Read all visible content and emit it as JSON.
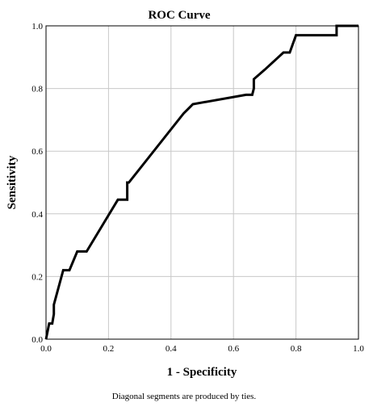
{
  "chart_data": {
    "type": "line",
    "title": "ROC Curve",
    "xlabel": "1 - Specificity",
    "ylabel": "Sensitivity",
    "xlim": [
      0,
      1
    ],
    "ylim": [
      0,
      1
    ],
    "xticks": [
      "0.0",
      "0.2",
      "0.4",
      "0.6",
      "0.8",
      "1.0"
    ],
    "yticks": [
      "0.0",
      "0.2",
      "0.4",
      "0.6",
      "0.8",
      "1.0"
    ],
    "grid": true,
    "footnote": "Diagonal segments are produced by ties.",
    "series": [
      {
        "name": "",
        "x": [
          0.0,
          0.01,
          0.02,
          0.025,
          0.025,
          0.055,
          0.075,
          0.1,
          0.13,
          0.23,
          0.26,
          0.26,
          0.265,
          0.44,
          0.46,
          0.47,
          0.64,
          0.66,
          0.665,
          0.665,
          0.7,
          0.76,
          0.78,
          0.8,
          0.93,
          0.93,
          1.0
        ],
        "y": [
          0.0,
          0.05,
          0.05,
          0.08,
          0.11,
          0.22,
          0.22,
          0.28,
          0.28,
          0.445,
          0.445,
          0.5,
          0.5,
          0.72,
          0.74,
          0.75,
          0.78,
          0.78,
          0.8,
          0.83,
          0.86,
          0.915,
          0.915,
          0.97,
          0.97,
          1.0,
          1.0
        ]
      }
    ]
  }
}
